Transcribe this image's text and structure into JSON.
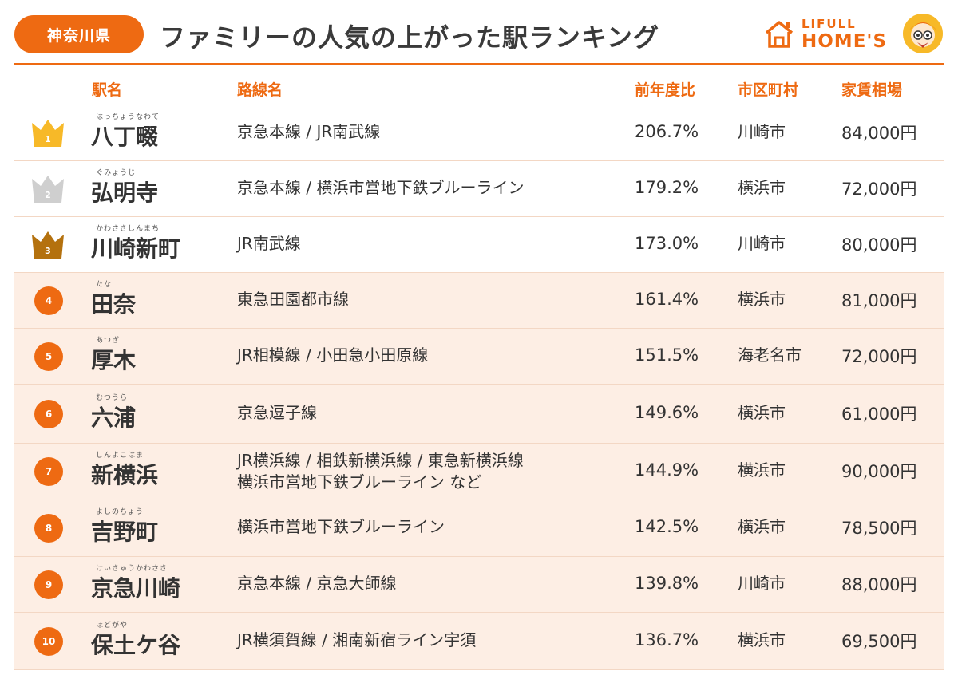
{
  "header": {
    "prefecture": "神奈川県",
    "title": "ファミリーの人気の上がった駅ランキング",
    "logo_line1": "LIFULL",
    "logo_line2": "HOME'S"
  },
  "columns": {
    "station": "駅名",
    "lines": "路線名",
    "yoy": "前年度比",
    "city": "市区町村",
    "rent": "家賃相場"
  },
  "colors": {
    "accent": "#ee6a12",
    "row_shade": "#fdeee4",
    "gold": "#f7b928",
    "silver": "#cfcfcf",
    "bronze": "#b4710e"
  },
  "rows": [
    {
      "rank": "1",
      "furigana": "はっちょうなわて",
      "station": "八丁畷",
      "lines": [
        "京急本線 / JR南武線"
      ],
      "yoy": "206.7%",
      "city": "川崎市",
      "rent": "84,000円"
    },
    {
      "rank": "2",
      "furigana": "ぐみょうじ",
      "station": "弘明寺",
      "lines": [
        "京急本線 / 横浜市営地下鉄ブルーライン"
      ],
      "yoy": "179.2%",
      "city": "横浜市",
      "rent": "72,000円"
    },
    {
      "rank": "3",
      "furigana": "かわさきしんまち",
      "station": "川崎新町",
      "lines": [
        "JR南武線"
      ],
      "yoy": "173.0%",
      "city": "川崎市",
      "rent": "80,000円"
    },
    {
      "rank": "4",
      "furigana": "たな",
      "station": "田奈",
      "lines": [
        "東急田園都市線"
      ],
      "yoy": "161.4%",
      "city": "横浜市",
      "rent": "81,000円"
    },
    {
      "rank": "5",
      "furigana": "あつぎ",
      "station": "厚木",
      "lines": [
        "JR相模線 / 小田急小田原線"
      ],
      "yoy": "151.5%",
      "city": "海老名市",
      "rent": "72,000円"
    },
    {
      "rank": "6",
      "furigana": "むつうら",
      "station": "六浦",
      "lines": [
        "京急逗子線"
      ],
      "yoy": "149.6%",
      "city": "横浜市",
      "rent": "61,000円"
    },
    {
      "rank": "7",
      "furigana": "しんよこはま",
      "station": "新横浜",
      "lines": [
        "JR横浜線 / 相鉄新横浜線 / 東急新横浜線",
        "横浜市営地下鉄ブルーライン など"
      ],
      "yoy": "144.9%",
      "city": "横浜市",
      "rent": "90,000円"
    },
    {
      "rank": "8",
      "furigana": "よしのちょう",
      "station": "吉野町",
      "lines": [
        "横浜市営地下鉄ブルーライン"
      ],
      "yoy": "142.5%",
      "city": "横浜市",
      "rent": "78,500円"
    },
    {
      "rank": "9",
      "furigana": "けいきゅうかわさき",
      "station": "京急川崎",
      "lines": [
        "京急本線 / 京急大師線"
      ],
      "yoy": "139.8%",
      "city": "川崎市",
      "rent": "88,000円"
    },
    {
      "rank": "10",
      "furigana": "ほどがや",
      "station": "保土ケ谷",
      "lines": [
        "JR横須賀線 / 湘南新宿ライン宇須"
      ],
      "yoy": "136.7%",
      "city": "横浜市",
      "rent": "69,500円"
    }
  ]
}
